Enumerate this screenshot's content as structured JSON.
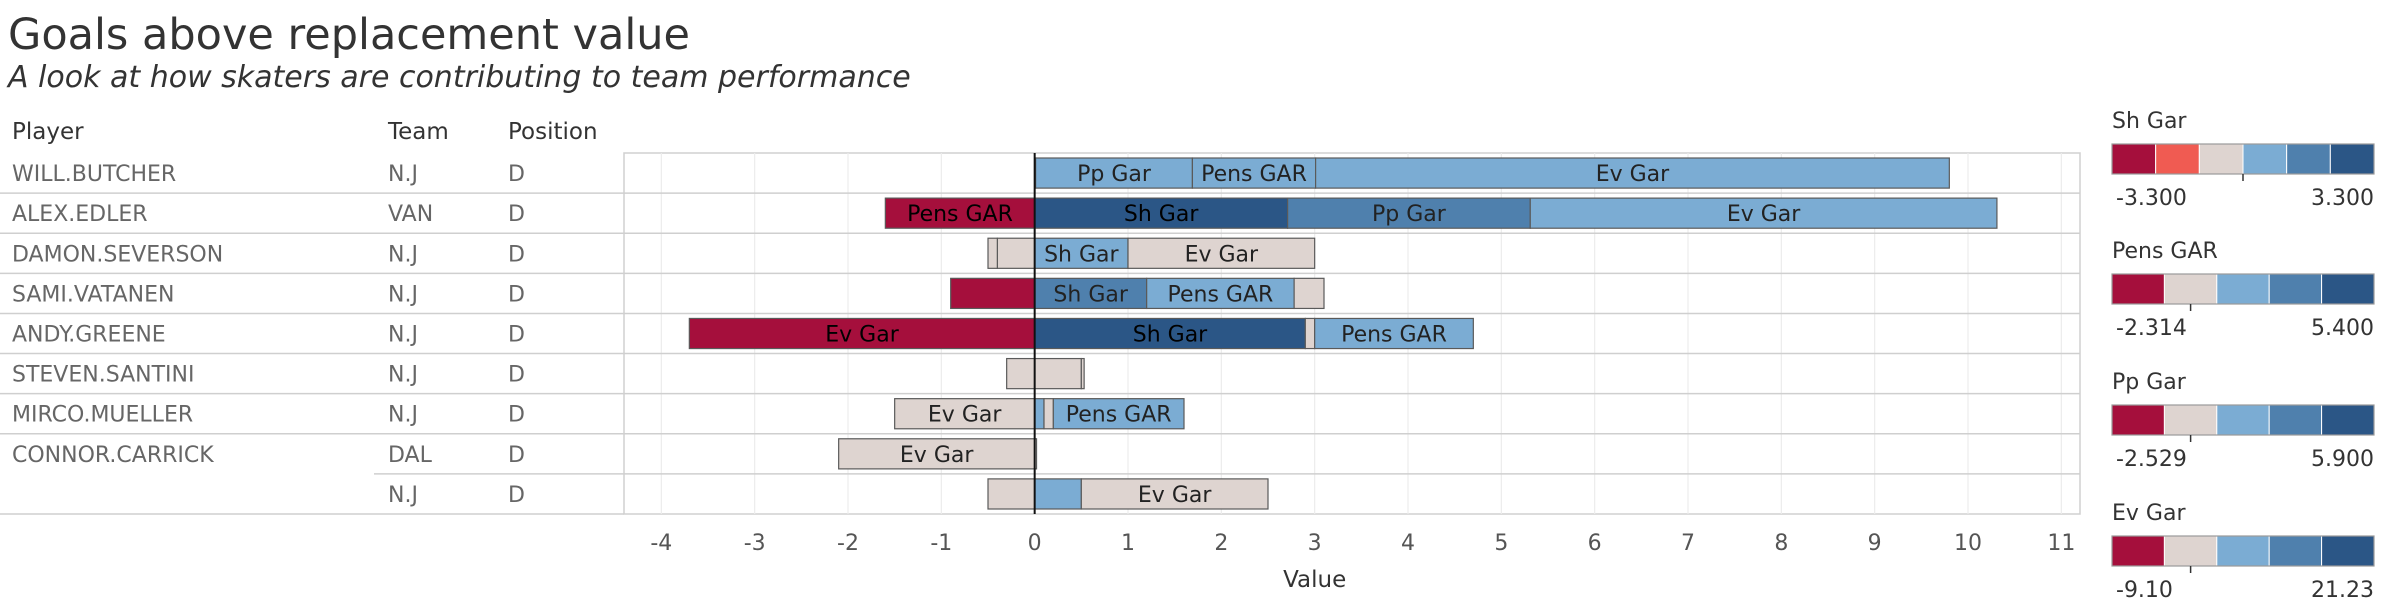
{
  "title": "Goals above replacement value",
  "subtitle": "A look at how skaters are contributing to team performance",
  "table": {
    "headers": [
      "Player",
      "Team",
      "Position"
    ],
    "rows": [
      {
        "player": "WILL.BUTCHER",
        "team": "N.J",
        "position": "D"
      },
      {
        "player": "ALEX.EDLER",
        "team": "VAN",
        "position": "D"
      },
      {
        "player": "DAMON.SEVERSON",
        "team": "N.J",
        "position": "D"
      },
      {
        "player": "SAMI.VATANEN",
        "team": "N.J",
        "position": "D"
      },
      {
        "player": "ANDY.GREENE",
        "team": "N.J",
        "position": "D"
      },
      {
        "player": "STEVEN.SANTINI",
        "team": "N.J",
        "position": "D"
      },
      {
        "player": "MIRCO.MUELLER",
        "team": "N.J",
        "position": "D"
      },
      {
        "player": "CONNOR.CARRICK",
        "team": "DAL",
        "position": "D"
      },
      {
        "player": "",
        "team": "N.J",
        "position": "D"
      }
    ]
  },
  "chart_data": {
    "type": "bar",
    "orientation": "horizontal",
    "stacked": true,
    "xlabel": "Value",
    "xlim": [
      -4.4,
      11.2
    ],
    "xticks": [
      -4,
      -3,
      -2,
      -1,
      0,
      1,
      2,
      3,
      4,
      5,
      6,
      7,
      8,
      9,
      10,
      11
    ],
    "grid": "vertical",
    "rows": [
      {
        "segments": [
          {
            "metric": "Sh Gar",
            "value": 0.01,
            "label": ""
          },
          {
            "metric": "Pp Gar",
            "value": 1.68,
            "label": "Pp Gar"
          },
          {
            "metric": "Pens GAR",
            "value": 1.32,
            "label": "Pens GAR"
          },
          {
            "metric": "Ev Gar",
            "value": 6.79,
            "label": "Ev Gar"
          }
        ]
      },
      {
        "segments": [
          {
            "metric": "Pens GAR",
            "value": -1.6,
            "label": "Pens GAR"
          },
          {
            "metric": "Sh Gar",
            "value": 2.71,
            "label": "Sh Gar"
          },
          {
            "metric": "Pp Gar",
            "value": 2.6,
            "label": "Pp Gar"
          },
          {
            "metric": "Ev Gar",
            "value": 5.0,
            "label": "Ev Gar"
          }
        ]
      },
      {
        "segments": [
          {
            "metric": "Pens GAR",
            "value": -0.4,
            "label": ""
          },
          {
            "metric": "Pp Gar",
            "value": -0.1,
            "label": ""
          },
          {
            "metric": "Sh Gar",
            "value": 1.0,
            "label": "Sh Gar"
          },
          {
            "metric": "Ev Gar",
            "value": 2.0,
            "label": "Ev Gar"
          }
        ]
      },
      {
        "segments": [
          {
            "metric": "Pens GAR",
            "value": -0.9,
            "label": ""
          },
          {
            "metric": "Sh Gar",
            "value": 1.2,
            "label": "Sh Gar"
          },
          {
            "metric": "Pens GAR",
            "value": 1.58,
            "label": "Pens GAR"
          },
          {
            "metric": "Ev Gar",
            "value": 0.32,
            "label": ""
          }
        ]
      },
      {
        "segments": [
          {
            "metric": "Ev Gar",
            "value": -3.7,
            "label": "Ev Gar"
          },
          {
            "metric": "Sh Gar",
            "value": 2.9,
            "label": "Sh Gar"
          },
          {
            "metric": "Pp Gar",
            "value": 0.1,
            "label": ""
          },
          {
            "metric": "Pens GAR",
            "value": 1.7,
            "label": "Pens GAR"
          }
        ]
      },
      {
        "segments": [
          {
            "metric": "Ev Gar",
            "value": -0.3,
            "label": ""
          },
          {
            "metric": "Pens GAR",
            "value": 0.5,
            "label": ""
          },
          {
            "metric": "Pp Gar",
            "value": 0.03,
            "label": ""
          }
        ]
      },
      {
        "segments": [
          {
            "metric": "Ev Gar",
            "value": -1.5,
            "label": "Ev Gar"
          },
          {
            "metric": "Sh Gar",
            "value": 0.1,
            "label": ""
          },
          {
            "metric": "Pp Gar",
            "value": 0.1,
            "label": ""
          },
          {
            "metric": "Pens GAR",
            "value": 1.4,
            "label": "Pens GAR"
          }
        ]
      },
      {
        "segments": [
          {
            "metric": "Ev Gar",
            "value": -2.1,
            "label": "Ev Gar"
          },
          {
            "metric": "Pens GAR",
            "value": 0.02,
            "label": ""
          }
        ]
      },
      {
        "segments": [
          {
            "metric": "Pens GAR",
            "value": -0.5,
            "label": ""
          },
          {
            "metric": "Sh Gar",
            "value": 0.5,
            "label": ""
          },
          {
            "metric": "Ev Gar",
            "value": 2.0,
            "label": "Ev Gar"
          }
        ]
      }
    ],
    "legends": [
      {
        "title": "Sh Gar",
        "min": -3.3,
        "max": 3.3,
        "min_label": "-3.300",
        "max_label": "3.300",
        "colors": [
          "#a50f3c",
          "#f05b52",
          "#ded4d0",
          "#7bacd3",
          "#4f80ad",
          "#2b5686"
        ]
      },
      {
        "title": "Pens GAR",
        "min": -2.314,
        "max": 5.4,
        "min_label": "-2.314",
        "max_label": "5.400",
        "colors": [
          "#a50f3c",
          "#ded4d0",
          "#7bacd3",
          "#4f80ad",
          "#2b5686"
        ]
      },
      {
        "title": "Pp Gar",
        "min": -2.529,
        "max": 5.9,
        "min_label": "-2.529",
        "max_label": "5.900",
        "colors": [
          "#a50f3c",
          "#ded4d0",
          "#7bacd3",
          "#4f80ad",
          "#2b5686"
        ]
      },
      {
        "title": "Ev Gar",
        "min": -9.1,
        "max": 21.23,
        "min_label": "-9.10",
        "max_label": "21.23",
        "colors": [
          "#a50f3c",
          "#ded4d0",
          "#7bacd3",
          "#4f80ad",
          "#2b5686"
        ]
      }
    ]
  }
}
